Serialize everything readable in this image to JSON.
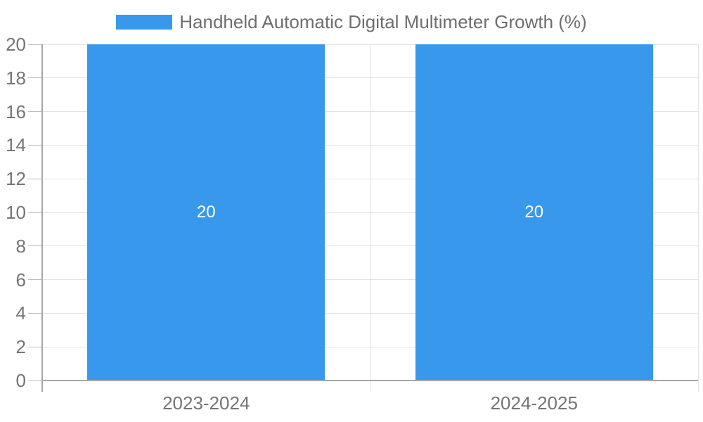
{
  "chart_data": {
    "type": "bar",
    "title": "",
    "series_label": "Handheld Automatic Digital Multimeter Growth (%)",
    "categories": [
      "2023-2024",
      "2024-2025"
    ],
    "values": [
      20,
      20
    ],
    "data_labels": [
      "20",
      "20"
    ],
    "ylim": [
      0,
      20
    ],
    "ytick_step": 2,
    "xlabel": "",
    "ylabel": "",
    "grid": true,
    "legend_position": "top-center",
    "colors": {
      "bar": "#3899EC",
      "axis_line": "#a6a6a6",
      "tick": "#bdbdbd",
      "gridline": "#e3e3e3",
      "axis_text": "#757575",
      "legend_text": "#6e6e6e",
      "bar_label_text": "#ffffff",
      "background": "#ffffff"
    }
  }
}
